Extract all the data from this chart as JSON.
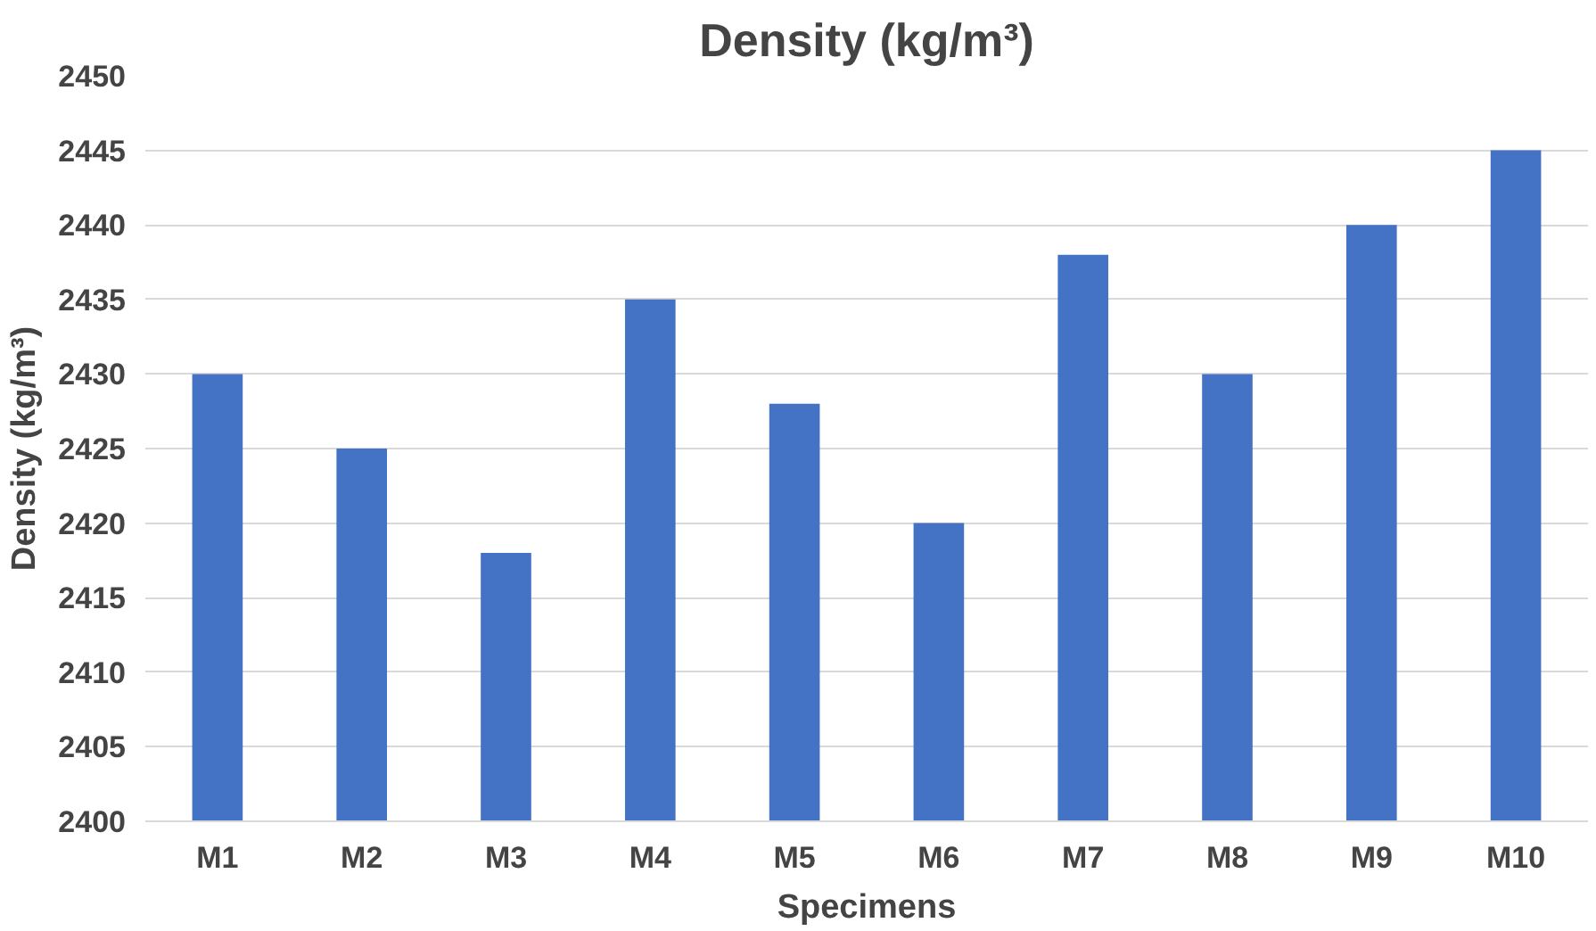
{
  "chart_data": {
    "type": "bar",
    "title": "Density (kg/m³)",
    "xlabel": "Specimens",
    "ylabel": "Density (kg/m³)",
    "categories": [
      "M1",
      "M2",
      "M3",
      "M4",
      "M5",
      "M6",
      "M7",
      "M8",
      "M9",
      "M10"
    ],
    "values": [
      2430,
      2425,
      2418,
      2435,
      2428,
      2420,
      2438,
      2430,
      2440,
      2445
    ],
    "color": "#4472c4",
    "ylim": [
      2400,
      2450
    ],
    "yticks": [
      2400,
      2405,
      2410,
      2415,
      2420,
      2425,
      2430,
      2435,
      2440,
      2445,
      2450
    ],
    "grid": "y"
  }
}
